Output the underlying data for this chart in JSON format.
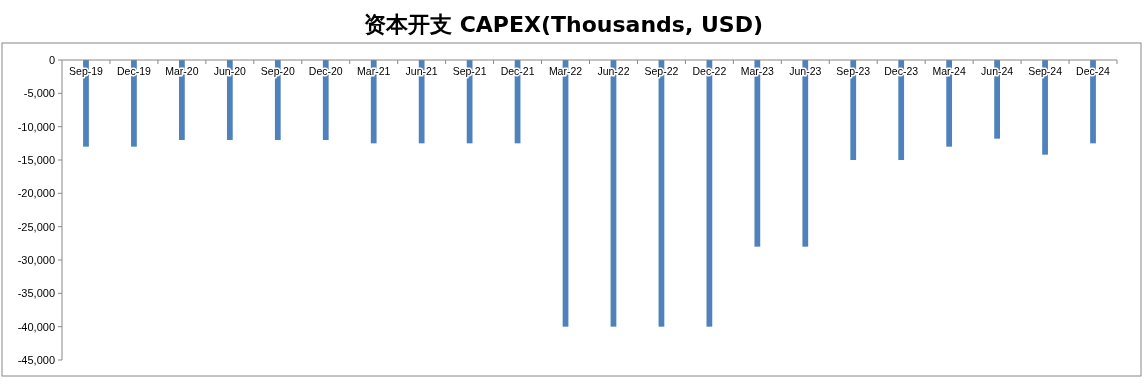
{
  "chart_data": {
    "type": "bar",
    "title": "资本开支 CAPEX(Thousands, USD)",
    "categories": [
      "Sep-19",
      "Dec-19",
      "Mar-20",
      "Jun-20",
      "Sep-20",
      "Dec-20",
      "Mar-21",
      "Jun-21",
      "Sep-21",
      "Dec-21",
      "Mar-22",
      "Jun-22",
      "Sep-22",
      "Dec-22",
      "Mar-23",
      "Jun-23",
      "Sep-23",
      "Dec-23",
      "Mar-24",
      "Jun-24",
      "Sep-24",
      "Dec-24"
    ],
    "series": [
      {
        "color": "#4f81bd",
        "values": [
          -13000,
          -13000,
          -12000,
          -12000,
          -12000,
          -12000,
          -12500,
          -12500,
          -12500,
          -12500,
          -40000,
          -40000,
          -40000,
          -40000,
          -28000,
          -28000,
          -15000,
          -15000,
          -13000,
          -11800,
          -14200,
          -12500
        ]
      }
    ],
    "ylim": [
      -45000,
      0
    ],
    "yticks": [
      {
        "value": -45000,
        "label": "-45,000"
      },
      {
        "value": -40000,
        "label": "-40,000"
      },
      {
        "value": -35000,
        "label": "-35,000"
      },
      {
        "value": -30000,
        "label": "-30,000"
      },
      {
        "value": -25000,
        "label": "-25,000"
      },
      {
        "value": -20000,
        "label": "-20,000"
      },
      {
        "value": -15000,
        "label": "-15,000"
      },
      {
        "value": -10000,
        "label": "-10,000"
      },
      {
        "value": -5000,
        "label": "-5,000"
      },
      0
    ],
    "grid": false
  }
}
